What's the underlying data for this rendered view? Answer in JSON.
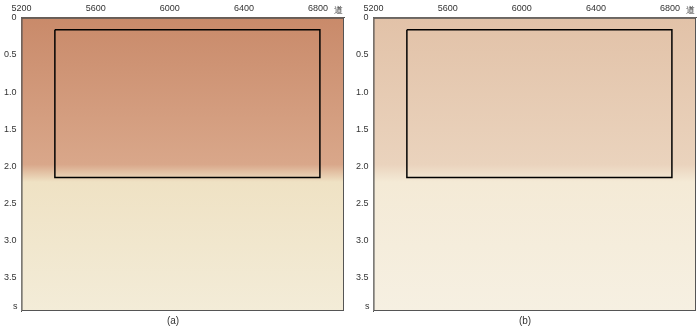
{
  "chart_data": [
    {
      "type": "line",
      "title": "(a)",
      "x_label": "道",
      "y_label": "s",
      "x": [
        5380,
        6810,
        6810,
        5380,
        5380
      ],
      "values": [
        0.16,
        0.16,
        2.15,
        2.15,
        0.16
      ],
      "color": "#000000",
      "xlim": [
        5200,
        6940
      ],
      "xticks": [
        5200,
        5600,
        6000,
        6400,
        6800
      ],
      "ylim": [
        0,
        3.95
      ],
      "yticks": [
        0,
        0.5,
        {
          "value": 1,
          "label": "1.0"
        },
        1.5,
        {
          "value": 2,
          "label": "2.0"
        },
        2.5,
        {
          "value": 3,
          "label": "3.0"
        },
        3.5
      ],
      "grid": false
    },
    {
      "type": "line",
      "title": "(b)",
      "x_label": "道",
      "y_label": "s",
      "x": [
        5380,
        6810,
        6810,
        5380,
        5380
      ],
      "values": [
        0.16,
        0.16,
        2.15,
        2.15,
        0.16
      ],
      "color": "#000000",
      "xlim": [
        5200,
        6940
      ],
      "xticks": [
        5200,
        5600,
        6000,
        6400,
        6800
      ],
      "ylim": [
        0,
        3.95
      ],
      "yticks": [
        0,
        0.5,
        {
          "value": 1,
          "label": "1.0"
        },
        1.5,
        {
          "value": 2,
          "label": "2.0"
        },
        2.5,
        {
          "value": 3,
          "label": "3.0"
        },
        3.5
      ],
      "grid": false
    }
  ]
}
